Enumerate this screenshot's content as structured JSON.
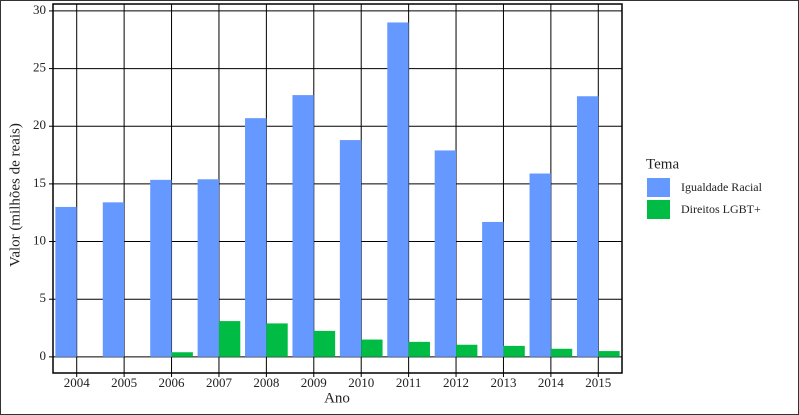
{
  "chart_data": {
    "type": "bar",
    "x_label": "Ano",
    "y_label": "Valor (milhões de reais)",
    "legend_title": "Tema",
    "legend_position": "right",
    "categories": [
      "2004",
      "2005",
      "2006",
      "2007",
      "2008",
      "2009",
      "2010",
      "2011",
      "2012",
      "2013",
      "2014",
      "2015"
    ],
    "series": [
      {
        "name": "Igualdade Racial",
        "color": "#6699ff",
        "values": [
          13.0,
          13.4,
          15.35,
          15.4,
          20.7,
          22.7,
          18.8,
          29.0,
          17.9,
          11.7,
          15.9,
          22.6
        ]
      },
      {
        "name": "Direitos LGBT+",
        "color": "#00bb44",
        "values": [
          0,
          0,
          0.4,
          3.1,
          2.9,
          2.25,
          1.5,
          1.3,
          1.05,
          0.95,
          0.7,
          0.5
        ]
      }
    ],
    "ylim": [
      -1.4,
      30.6
    ],
    "yticks": [
      0,
      5,
      10,
      15,
      20,
      25,
      30
    ],
    "grid": true
  }
}
